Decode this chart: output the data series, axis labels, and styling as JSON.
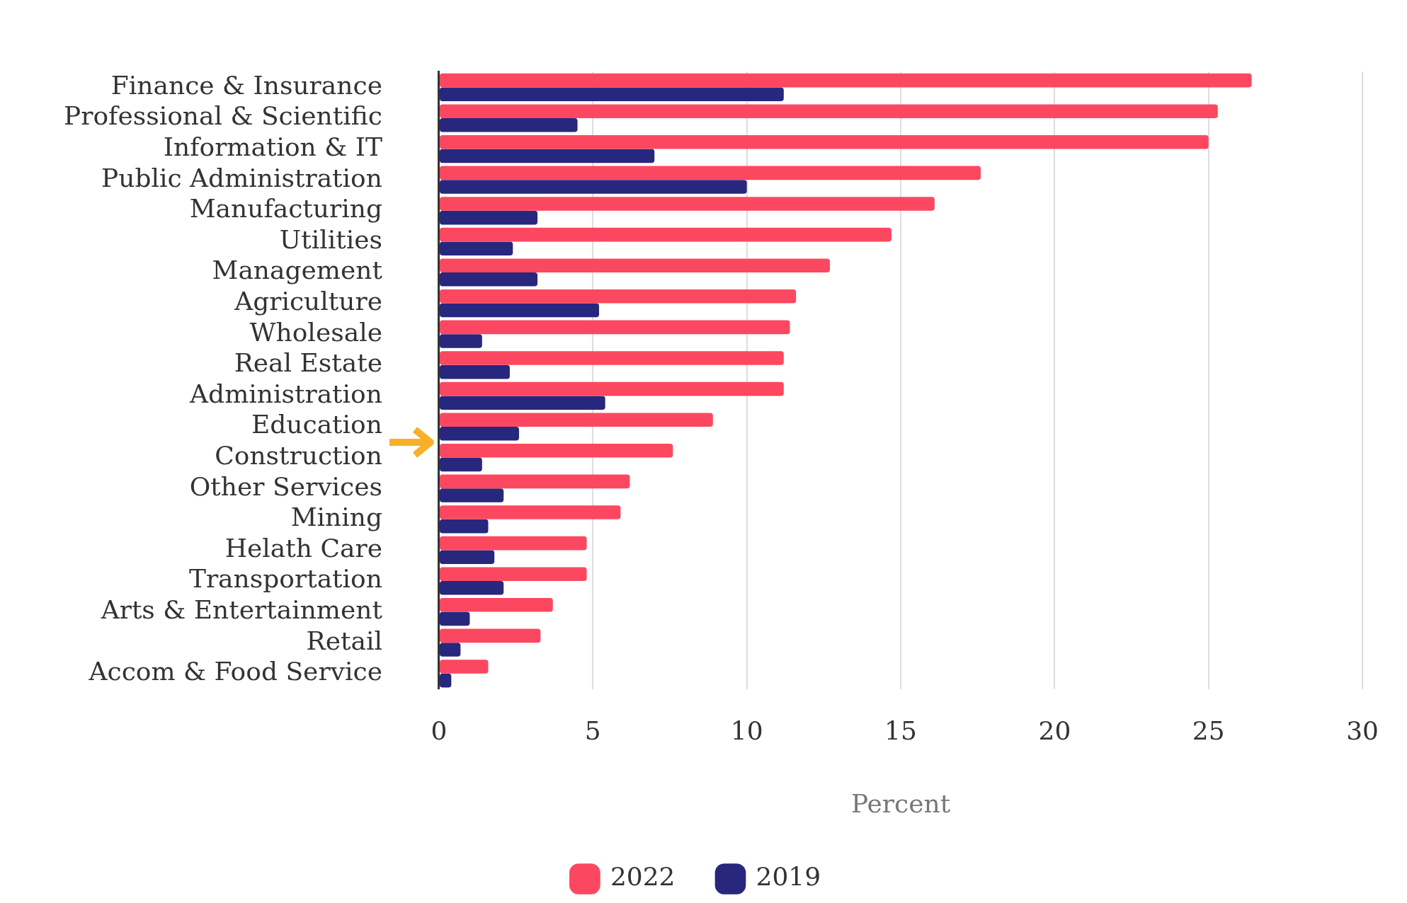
{
  "chart_data": {
    "type": "bar",
    "orientation": "horizontal",
    "xlabel": "Percent",
    "categories": [
      "Finance & Insurance",
      "Professional & Scientific",
      "Information & IT",
      "Public Administration",
      "Manufacturing",
      "Utilities",
      "Management",
      "Agriculture",
      "Wholesale",
      "Real Estate",
      "Administration",
      "Education",
      "Construction",
      "Other Services",
      "Mining",
      "Helath Care",
      "Transportation",
      "Arts & Entertainment",
      "Retail",
      "Accom & Food Service"
    ],
    "series": [
      {
        "name": "2022",
        "color": "#fb4860",
        "values": [
          26.4,
          25.3,
          25.0,
          17.6,
          16.1,
          14.7,
          12.7,
          11.6,
          11.4,
          11.2,
          11.2,
          8.9,
          7.6,
          6.2,
          5.9,
          4.8,
          4.8,
          3.7,
          3.3,
          1.6
        ]
      },
      {
        "name": "2019",
        "color": "#27277e",
        "values": [
          11.2,
          4.5,
          7.0,
          10.0,
          3.2,
          2.4,
          3.2,
          5.2,
          1.4,
          2.3,
          5.4,
          2.6,
          1.4,
          2.1,
          1.6,
          1.8,
          2.1,
          1.0,
          0.7,
          0.4
        ]
      }
    ],
    "xlim": [
      0,
      30
    ],
    "xticks": [
      0,
      5,
      10,
      15,
      20,
      25,
      30
    ],
    "grid": "x",
    "legend": "bottom"
  }
}
